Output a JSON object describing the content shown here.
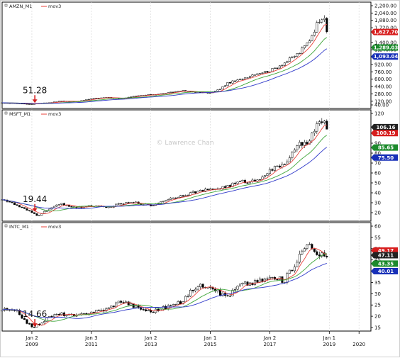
{
  "watermark": "© Lawrence Chan",
  "colors": {
    "candle_up": "#ffffff",
    "candle_down": "#000000",
    "candle_edge": "#000000",
    "ma_fast": "#e8413a",
    "ma_mid": "#3fa63a",
    "ma_slow": "#2f39c9",
    "badge_fast": "#d71e1e",
    "badge_mid": "#1c8a2c",
    "badge_slow": "#1830b8",
    "badge_price": "#222222",
    "arrow": "#d42020",
    "grid": "#d9d9d9",
    "panel_border": "#000000"
  },
  "chart_data": [
    {
      "type": "candlestick",
      "symbol_label": "AMZN_M1",
      "indicator_label": "mov3",
      "ylim": [
        40,
        2200
      ],
      "y_ticks": [
        "2,200.00",
        "2,040.00",
        "1,880.00",
        "1,720.00",
        "1,400.00",
        "1,240.00",
        "1,080.00",
        "920.00",
        "760.00",
        "600.00",
        "440.00",
        "280.00",
        "120.00",
        "40.00"
      ],
      "y_tick_values": [
        2200,
        2040,
        1880,
        1720,
        1400,
        1240,
        1080,
        920,
        760,
        600,
        440,
        280,
        120,
        40
      ],
      "annotation": "51.28",
      "annotation_x": 2009.1,
      "annotation_y": 51.28,
      "badges": [
        {
          "label": "1,627.70",
          "value": 1627.7,
          "role": "ma_fast"
        },
        {
          "label": "1,289.03",
          "value": 1289.03,
          "role": "ma_mid"
        },
        {
          "label": "1,093.04",
          "value": 1093.04,
          "role": "ma_slow"
        }
      ],
      "anchors": [
        [
          2008.0,
          85
        ],
        [
          2008.5,
          78
        ],
        [
          2009.0,
          55
        ],
        [
          2009.2,
          75
        ],
        [
          2009.6,
          90
        ],
        [
          2010.0,
          125
        ],
        [
          2010.5,
          115
        ],
        [
          2011.0,
          175
        ],
        [
          2011.5,
          205
        ],
        [
          2012.0,
          180
        ],
        [
          2012.5,
          230
        ],
        [
          2013.0,
          265
        ],
        [
          2013.5,
          290
        ],
        [
          2014.0,
          350
        ],
        [
          2014.5,
          320
        ],
        [
          2015.0,
          300
        ],
        [
          2015.3,
          375
        ],
        [
          2015.6,
          520
        ],
        [
          2016.0,
          590
        ],
        [
          2016.5,
          720
        ],
        [
          2017.0,
          780
        ],
        [
          2017.5,
          960
        ],
        [
          2018.0,
          1180
        ],
        [
          2018.3,
          1420
        ],
        [
          2018.5,
          1680
        ],
        [
          2018.7,
          1950
        ],
        [
          2018.85,
          1980
        ],
        [
          2018.95,
          1500
        ]
      ]
    },
    {
      "type": "candlestick",
      "symbol_label": "MSFT_M1",
      "indicator_label": "mov3",
      "ylim": [
        15,
        120
      ],
      "y_ticks": [
        "120",
        "90",
        "80",
        "70",
        "60",
        "50",
        "40",
        "30",
        "20"
      ],
      "y_tick_values": [
        120,
        90,
        80,
        70,
        60,
        50,
        40,
        30,
        20
      ],
      "annotation": "19.44",
      "annotation_x": 2009.1,
      "annotation_y": 19.44,
      "badges": [
        {
          "label": "106.16",
          "value": 106.16,
          "role": "price"
        },
        {
          "label": "100.19",
          "value": 100.19,
          "role": "ma_fast"
        },
        {
          "label": "85.65",
          "value": 85.65,
          "role": "ma_mid"
        },
        {
          "label": "75.50",
          "value": 75.5,
          "role": "ma_slow"
        }
      ],
      "anchors": [
        [
          2008.0,
          34
        ],
        [
          2008.5,
          27
        ],
        [
          2009.0,
          20
        ],
        [
          2009.2,
          17
        ],
        [
          2009.6,
          24
        ],
        [
          2010.0,
          29
        ],
        [
          2010.5,
          25
        ],
        [
          2011.0,
          27
        ],
        [
          2011.5,
          25
        ],
        [
          2012.0,
          29
        ],
        [
          2012.5,
          30
        ],
        [
          2013.0,
          27
        ],
        [
          2013.5,
          33
        ],
        [
          2014.0,
          37
        ],
        [
          2014.5,
          41
        ],
        [
          2015.0,
          43
        ],
        [
          2015.5,
          46
        ],
        [
          2016.0,
          51
        ],
        [
          2016.5,
          52
        ],
        [
          2017.0,
          62
        ],
        [
          2017.5,
          70
        ],
        [
          2018.0,
          88
        ],
        [
          2018.3,
          93
        ],
        [
          2018.6,
          108
        ],
        [
          2018.8,
          112
        ],
        [
          2018.95,
          104
        ]
      ]
    },
    {
      "type": "candlestick",
      "symbol_label": "INTC_M1",
      "indicator_label": "mov3",
      "ylim": [
        15,
        60
      ],
      "y_ticks": [
        "60",
        "55",
        "50",
        "45",
        "40",
        "35",
        "30",
        "25",
        "20",
        "15"
      ],
      "y_tick_values": [
        60,
        55,
        50,
        45,
        40,
        35,
        30,
        25,
        20,
        15
      ],
      "annotation": "14.66",
      "annotation_x": 2009.1,
      "annotation_y": 14.66,
      "badges": [
        {
          "label": "49.17",
          "value": 49.17,
          "role": "ma_fast"
        },
        {
          "label": "47.11",
          "value": 47.11,
          "role": "price"
        },
        {
          "label": "43.35",
          "value": 43.35,
          "role": "ma_mid"
        },
        {
          "label": "40.01",
          "value": 40.01,
          "role": "ma_slow"
        }
      ],
      "anchors": [
        [
          2008.0,
          23
        ],
        [
          2008.5,
          22
        ],
        [
          2009.0,
          15
        ],
        [
          2009.3,
          17
        ],
        [
          2009.6,
          20
        ],
        [
          2010.0,
          21
        ],
        [
          2010.5,
          20
        ],
        [
          2011.0,
          22
        ],
        [
          2011.5,
          23
        ],
        [
          2012.0,
          27
        ],
        [
          2012.5,
          24
        ],
        [
          2013.0,
          22
        ],
        [
          2013.5,
          24
        ],
        [
          2014.0,
          26
        ],
        [
          2014.5,
          33
        ],
        [
          2015.0,
          34
        ],
        [
          2015.3,
          30
        ],
        [
          2015.6,
          29
        ],
        [
          2016.0,
          34
        ],
        [
          2016.5,
          35
        ],
        [
          2017.0,
          37
        ],
        [
          2017.5,
          36
        ],
        [
          2018.0,
          47
        ],
        [
          2018.35,
          54
        ],
        [
          2018.55,
          46
        ],
        [
          2018.8,
          47
        ],
        [
          2018.95,
          47
        ]
      ]
    }
  ],
  "x_axis": {
    "xlim": [
      2008.0,
      2020.4
    ],
    "ticks": [
      {
        "value": 2009.0,
        "top": "Jan 2",
        "bottom": "2009"
      },
      {
        "value": 2011.0,
        "top": "Jan 3",
        "bottom": "2011"
      },
      {
        "value": 2013.0,
        "top": "Jan 2",
        "bottom": "2013"
      },
      {
        "value": 2015.0,
        "top": "Jan 1",
        "bottom": "2015"
      },
      {
        "value": 2017.0,
        "top": "Jan 2",
        "bottom": "2017"
      },
      {
        "value": 2019.0,
        "top": "Jan 1",
        "bottom": "2019"
      },
      {
        "value": 2020.0,
        "top": "",
        "bottom": "2020"
      }
    ]
  }
}
